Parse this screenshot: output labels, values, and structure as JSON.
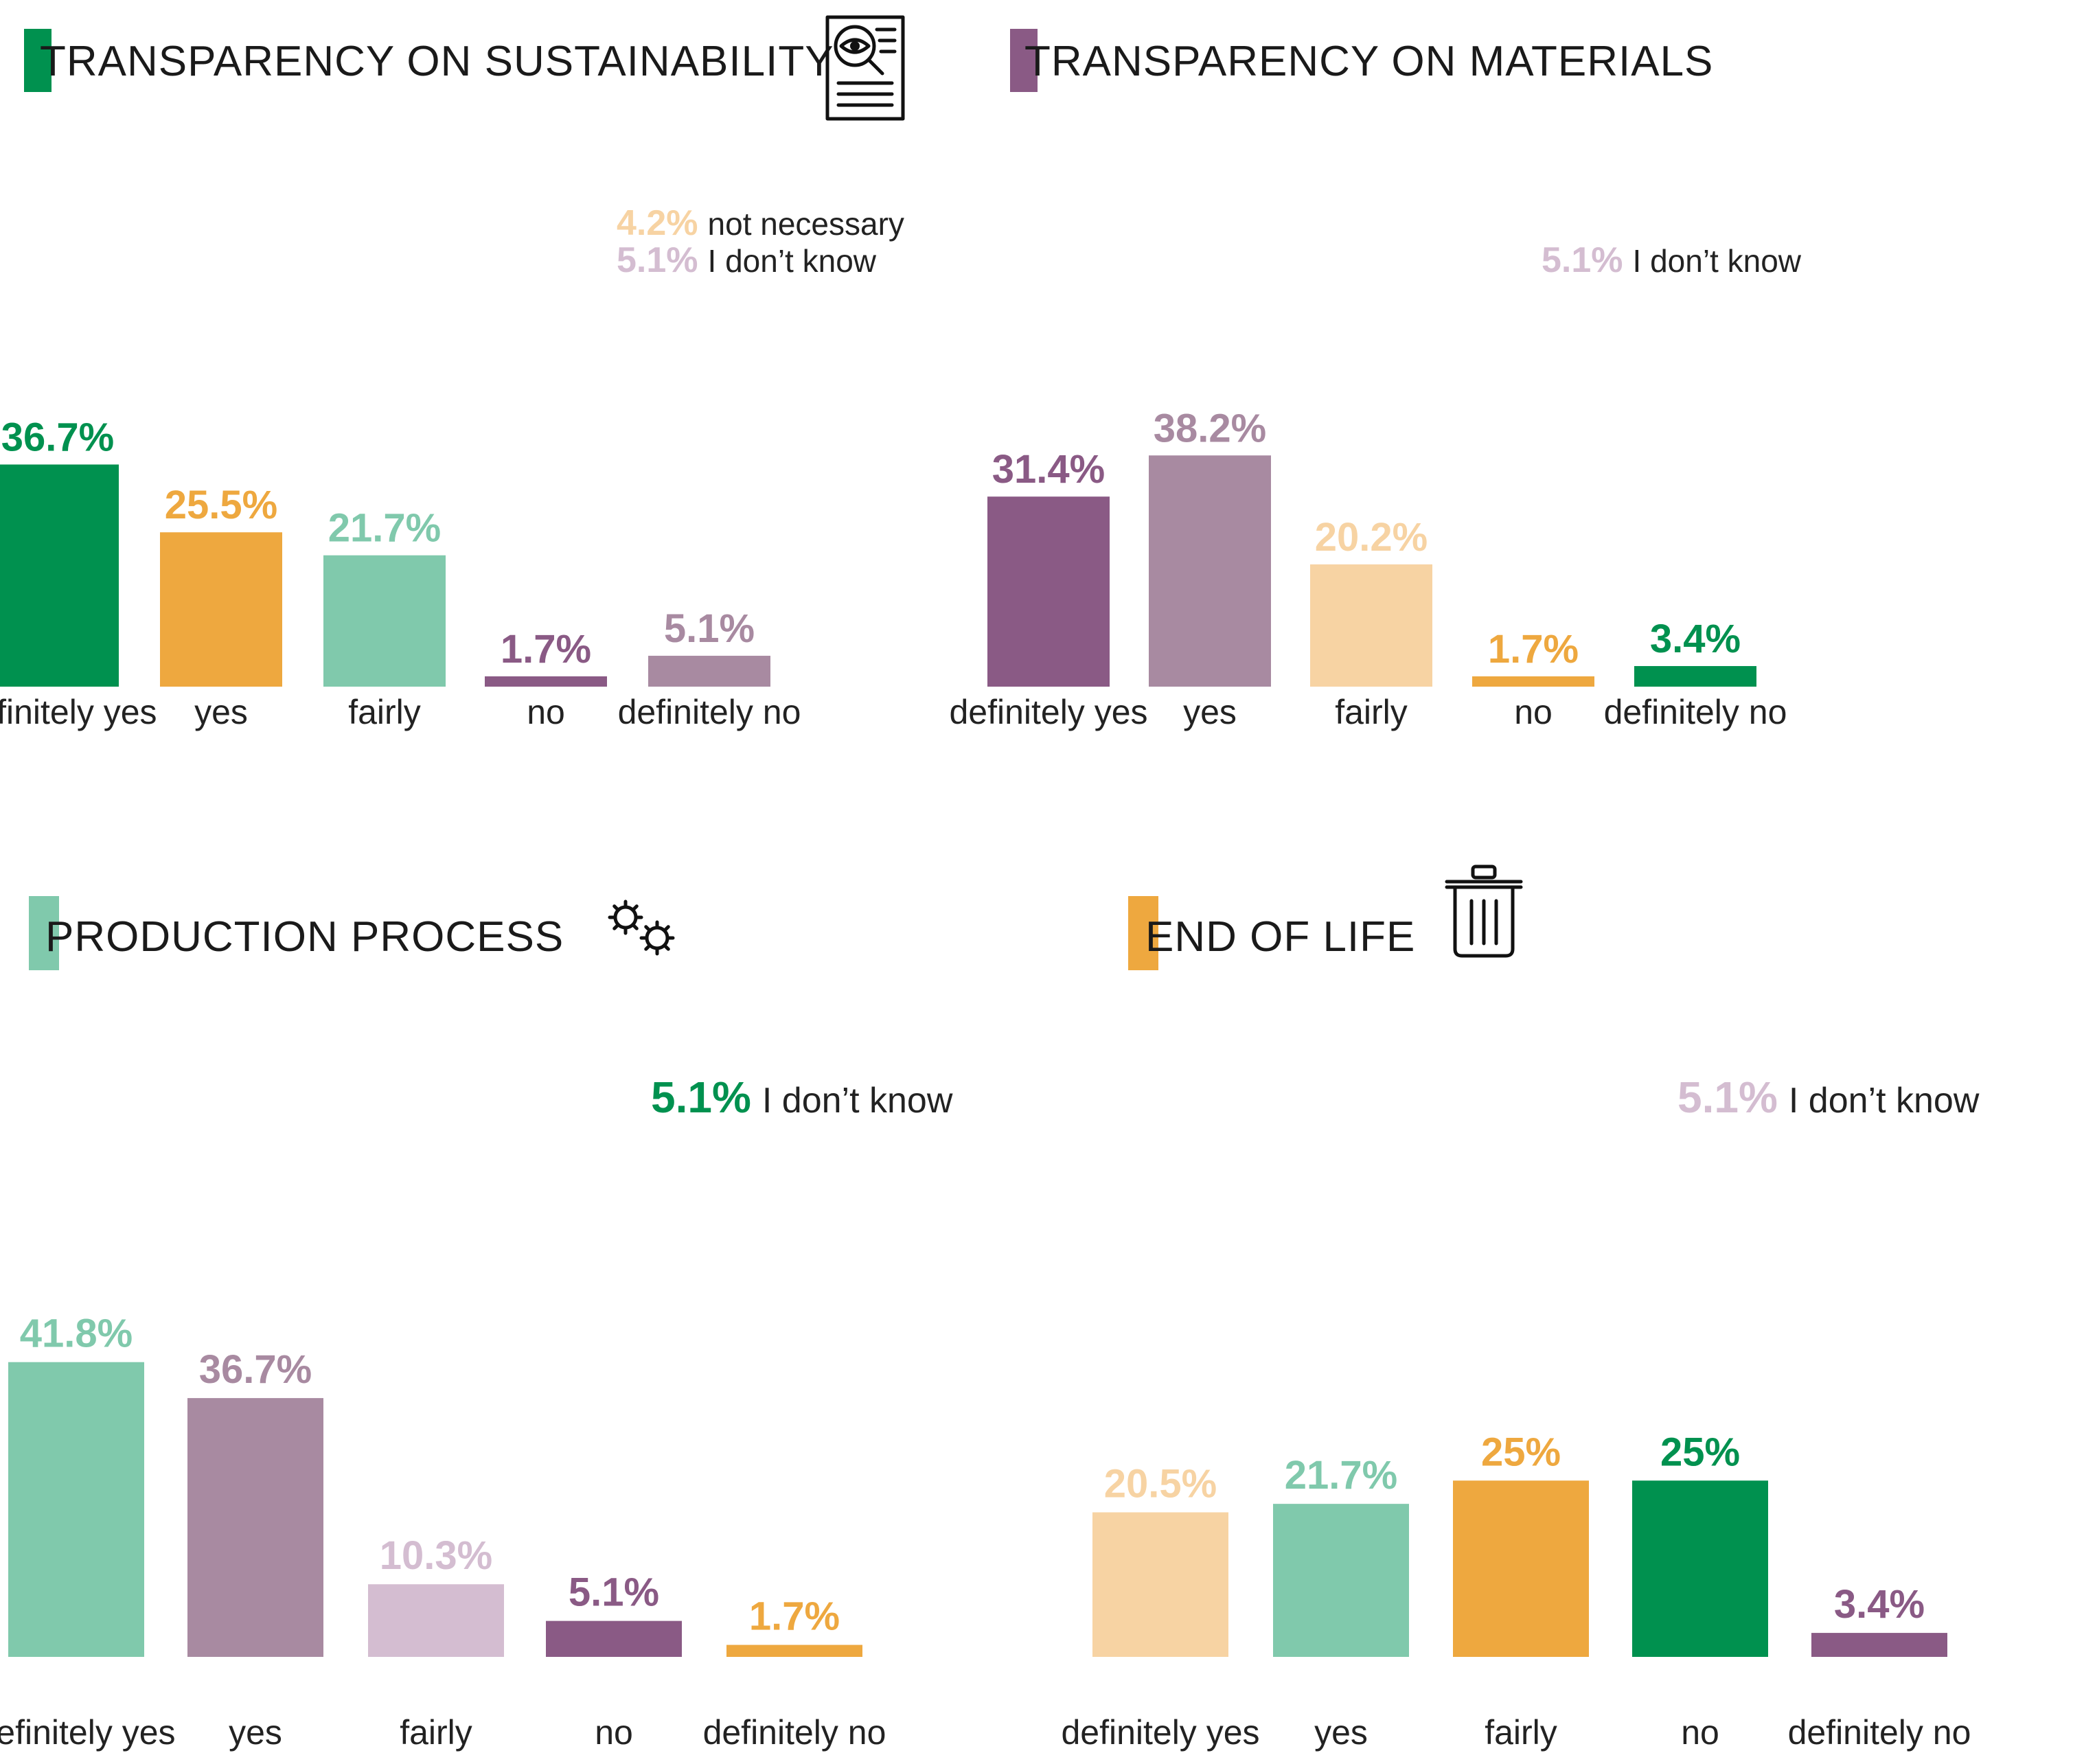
{
  "colors": {
    "dark_green": "#00914F",
    "orange": "#EEA83F",
    "mint": "#80C9AC",
    "plum": "#8A5A85",
    "mauve": "#A88AA1",
    "peach": "#F7D3A3",
    "lilac": "#D4BDD1"
  },
  "icons": [
    "document-search-icon",
    "gears-icon",
    "trash-icon"
  ],
  "chart_data": [
    {
      "type": "bar",
      "title": "TRANSPARENCY ON SUSTAINABILITY",
      "title_color": "dark_green",
      "icon": "document-search-icon",
      "categories": [
        "definitely yes",
        "yes",
        "fairly",
        "no",
        "definitely no"
      ],
      "values": [
        36.7,
        25.5,
        21.7,
        1.7,
        5.1
      ],
      "value_labels": [
        "36.7%",
        "25.5%",
        "21.7%",
        "1.7%",
        "5.1%"
      ],
      "bar_colors": [
        "dark_green",
        "orange",
        "mint",
        "plum",
        "mauve"
      ],
      "notes": [
        {
          "value": "4.2%",
          "label": "not necessary",
          "color": "peach"
        },
        {
          "value": "5.1%",
          "label": "I don’t know",
          "color": "lilac"
        }
      ],
      "xlabel": "",
      "ylabel": "",
      "ylim": [
        0,
        40
      ],
      "grid": false
    },
    {
      "type": "bar",
      "title": "TRANSPARENCY ON MATERIALS",
      "title_color": "plum",
      "icon": "",
      "categories": [
        "definitely yes",
        "yes",
        "fairly",
        "no",
        "definitely no"
      ],
      "values": [
        31.4,
        38.2,
        20.2,
        1.7,
        3.4
      ],
      "value_labels": [
        "31.4%",
        "38.2%",
        "20.2%",
        "1.7%",
        "3.4%"
      ],
      "bar_colors": [
        "plum",
        "mauve",
        "peach",
        "orange",
        "dark_green"
      ],
      "notes": [
        {
          "value": "5.1%",
          "label": "I don’t know",
          "color": "lilac"
        }
      ],
      "xlabel": "",
      "ylabel": "",
      "ylim": [
        0,
        40
      ],
      "grid": false
    },
    {
      "type": "bar",
      "title": "PRODUCTION PROCESS",
      "title_color": "mint",
      "icon": "gears-icon",
      "categories": [
        "definitely yes",
        "yes",
        "fairly",
        "no",
        "definitely no"
      ],
      "values": [
        41.8,
        36.7,
        10.3,
        5.1,
        1.7
      ],
      "value_labels": [
        "41.8%",
        "36.7%",
        "10.3%",
        "5.1%",
        "1.7%"
      ],
      "bar_colors": [
        "mint",
        "mauve",
        "lilac",
        "plum",
        "orange"
      ],
      "notes": [
        {
          "value": "5.1%",
          "label": "I don’t know",
          "color": "dark_green"
        }
      ],
      "xlabel": "",
      "ylabel": "",
      "ylim": [
        0,
        42
      ],
      "grid": false
    },
    {
      "type": "bar",
      "title": "END OF LIFE",
      "title_color": "orange",
      "icon": "trash-icon",
      "categories": [
        "definitely yes",
        "yes",
        "fairly",
        "no",
        "definitely no"
      ],
      "values": [
        20.5,
        21.7,
        25,
        25,
        3.4
      ],
      "value_labels": [
        "20.5%",
        "21.7%",
        "25%",
        "25%",
        "3.4%"
      ],
      "bar_colors": [
        "peach",
        "mint",
        "orange",
        "dark_green",
        "plum"
      ],
      "notes": [
        {
          "value": "5.1%",
          "label": "I don’t know",
          "color": "lilac"
        }
      ],
      "xlabel": "",
      "ylabel": "",
      "ylim": [
        0,
        42
      ],
      "grid": false
    }
  ]
}
